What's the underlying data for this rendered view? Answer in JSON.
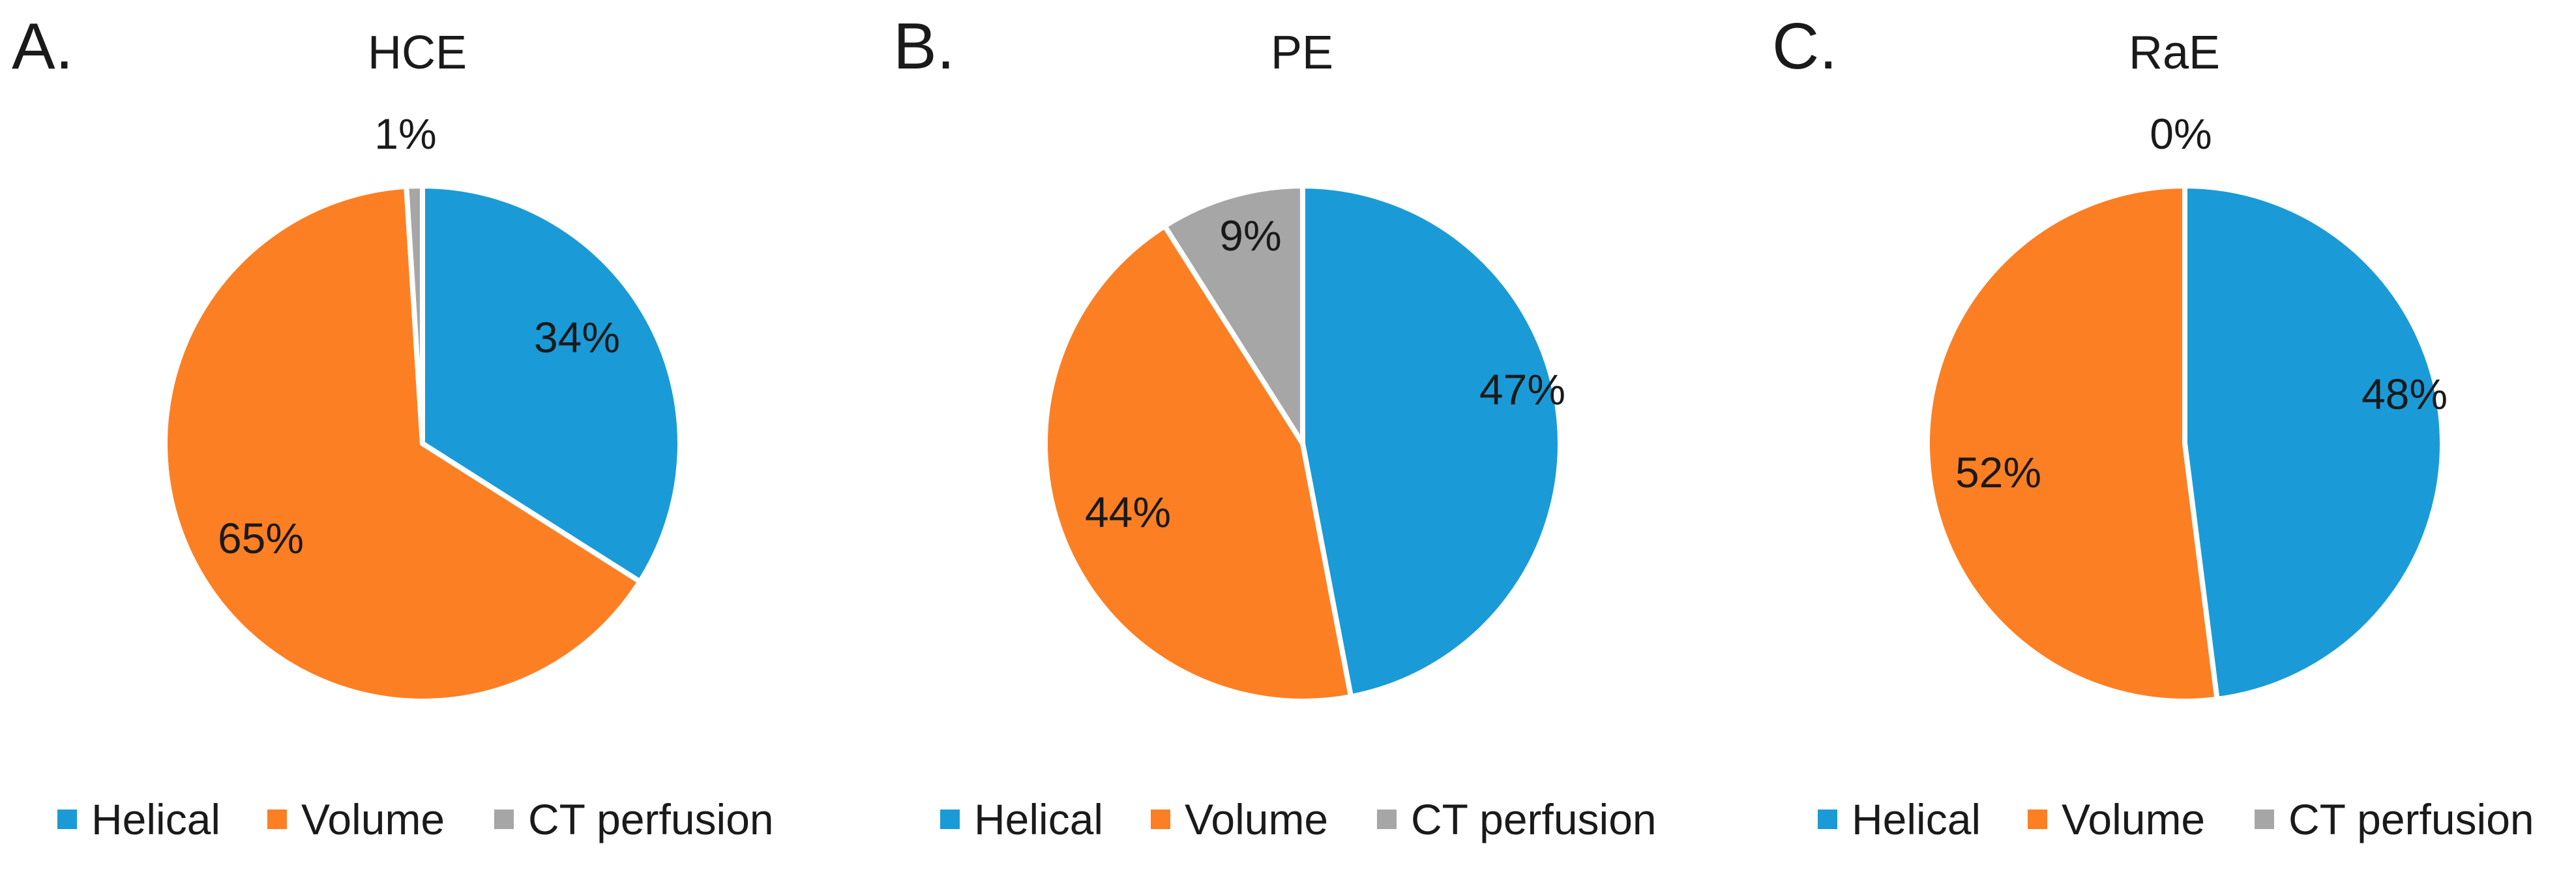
{
  "chart_data": [
    {
      "type": "pie",
      "panel_label": "A.",
      "title": "HCE",
      "categories": [
        "Helical",
        "Volume",
        "CT perfusion"
      ],
      "values": [
        34,
        65,
        1
      ],
      "data_labels": [
        "34%",
        "65%",
        "1%"
      ],
      "colors": [
        "#1a9bd7",
        "#fd7f23",
        "#a6a6a6"
      ],
      "start_angle_deg": 0,
      "direction": "clockwise",
      "legend": {
        "position": "bottom",
        "entries": [
          "Helical",
          "Volume",
          "CT perfusion"
        ]
      }
    },
    {
      "type": "pie",
      "panel_label": "B.",
      "title": "PE",
      "categories": [
        "Helical",
        "Volume",
        "CT perfusion"
      ],
      "values": [
        47,
        44,
        9
      ],
      "data_labels": [
        "47%",
        "44%",
        "9%"
      ],
      "colors": [
        "#1a9bd7",
        "#fd7f23",
        "#a6a6a6"
      ],
      "start_angle_deg": 0,
      "direction": "clockwise",
      "legend": {
        "position": "bottom",
        "entries": [
          "Helical",
          "Volume",
          "CT perfusion"
        ]
      }
    },
    {
      "type": "pie",
      "panel_label": "C.",
      "title": "RaE",
      "categories": [
        "Helical",
        "Volume",
        "CT perfusion"
      ],
      "values": [
        48,
        52,
        0
      ],
      "data_labels": [
        "48%",
        "52%",
        "0%"
      ],
      "colors": [
        "#1a9bd7",
        "#fd7f23",
        "#a6a6a6"
      ],
      "start_angle_deg": 0,
      "direction": "clockwise",
      "legend": {
        "position": "bottom",
        "entries": [
          "Helical",
          "Volume",
          "CT perfusion"
        ]
      }
    }
  ]
}
